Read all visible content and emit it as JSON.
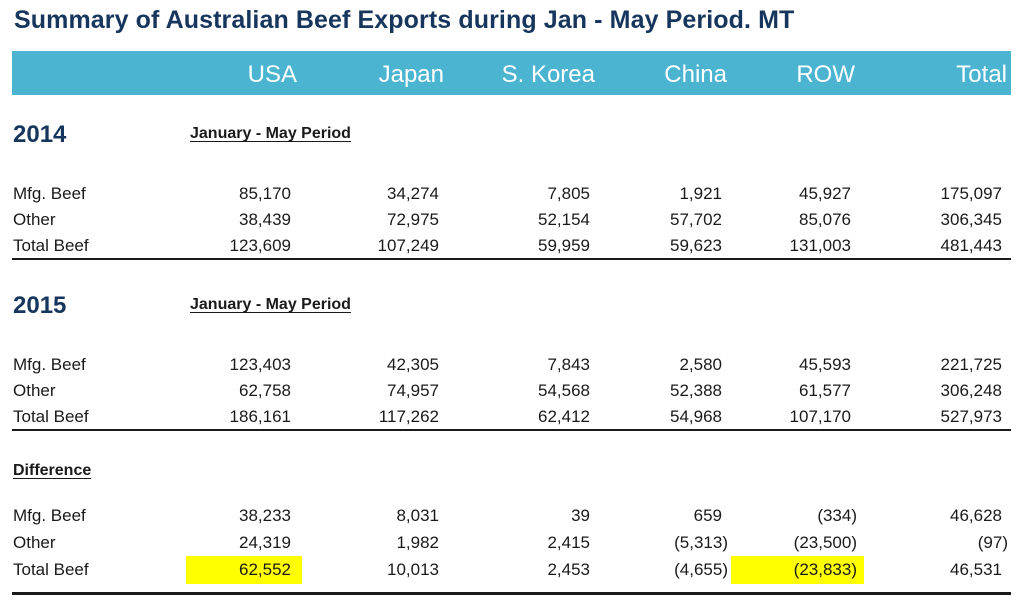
{
  "title": "Summary of Australian Beef Exports during Jan - May Period. MT",
  "header": [
    "USA",
    "Japan",
    "S. Korea",
    "China",
    "ROW",
    "Total"
  ],
  "sections": {
    "s2014": {
      "year": "2014",
      "period": "January  - May Period",
      "rows": [
        {
          "label": "Mfg. Beef",
          "values": [
            "85,170",
            "34,274",
            "7,805",
            "1,921",
            "45,927",
            "175,097"
          ]
        },
        {
          "label": "Other",
          "values": [
            "38,439",
            "72,975",
            "52,154",
            "57,702",
            "85,076",
            "306,345"
          ]
        },
        {
          "label": "Total Beef",
          "values": [
            "123,609",
            "107,249",
            "59,959",
            "59,623",
            "131,003",
            "481,443"
          ]
        }
      ]
    },
    "s2015": {
      "year": "2015",
      "period": "January  - May Period",
      "rows": [
        {
          "label": "Mfg. Beef",
          "values": [
            "123,403",
            "42,305",
            "7,843",
            "2,580",
            "45,593",
            "221,725"
          ]
        },
        {
          "label": "Other",
          "values": [
            "62,758",
            "74,957",
            "54,568",
            "52,388",
            "61,577",
            "306,248"
          ]
        },
        {
          "label": "Total Beef",
          "values": [
            "186,161",
            "117,262",
            "62,412",
            "54,968",
            "107,170",
            "527,973"
          ]
        }
      ]
    },
    "diff": {
      "label": "Difference",
      "rows": [
        {
          "label": "Mfg. Beef",
          "values": [
            "38,233",
            "8,031",
            "39",
            "659",
            "(334)",
            "46,628"
          ]
        },
        {
          "label": "Other",
          "values": [
            "24,319",
            "1,982",
            "2,415",
            "(5,313)",
            "(23,500)",
            "(97)"
          ]
        },
        {
          "label": "Total Beef",
          "values": [
            "62,552",
            "10,013",
            "2,453",
            "(4,655)",
            "(23,833)",
            "46,531"
          ]
        }
      ]
    }
  },
  "colors": {
    "header_bg": "#4bb4d0",
    "title": "#17365d",
    "highlight": "#ffff00"
  }
}
